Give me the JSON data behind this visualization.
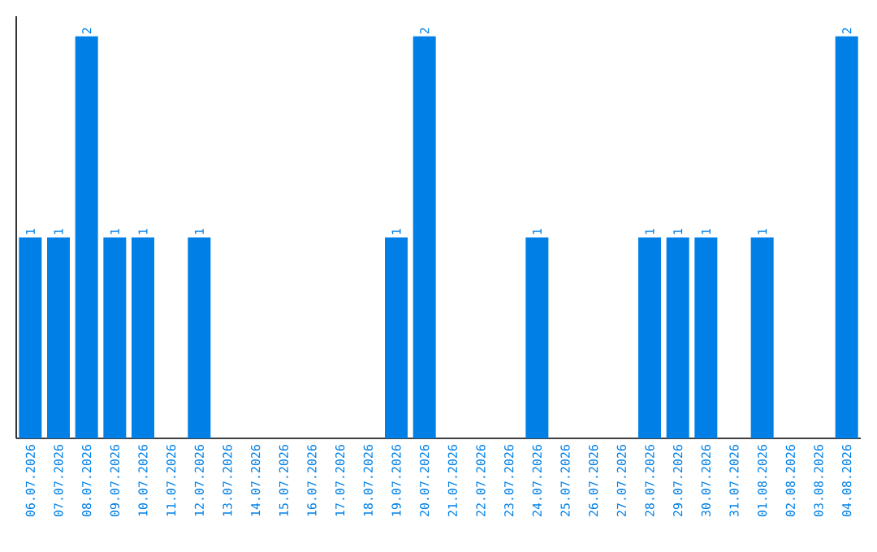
{
  "chart_data": {
    "type": "bar",
    "categories": [
      "06.07.2026",
      "07.07.2026",
      "08.07.2026",
      "09.07.2026",
      "10.07.2026",
      "11.07.2026",
      "12.07.2026",
      "13.07.2026",
      "14.07.2026",
      "15.07.2026",
      "16.07.2026",
      "17.07.2026",
      "18.07.2026",
      "19.07.2026",
      "20.07.2026",
      "21.07.2026",
      "22.07.2026",
      "23.07.2026",
      "24.07.2026",
      "25.07.2026",
      "26.07.2026",
      "27.07.2026",
      "28.07.2026",
      "29.07.2026",
      "30.07.2026",
      "31.07.2026",
      "01.08.2026",
      "02.08.2026",
      "03.08.2026",
      "04.08.2026"
    ],
    "values": [
      1,
      1,
      2,
      1,
      1,
      0,
      1,
      0,
      0,
      0,
      0,
      0,
      0,
      1,
      2,
      0,
      0,
      0,
      1,
      0,
      0,
      0,
      1,
      1,
      1,
      0,
      1,
      0,
      0,
      2
    ],
    "value_labels": [
      "1",
      "1",
      "2",
      "1",
      "1",
      null,
      "1",
      null,
      null,
      null,
      null,
      null,
      null,
      "1",
      "2",
      null,
      null,
      null,
      "1",
      null,
      null,
      null,
      "1",
      "1",
      "1",
      null,
      "1",
      null,
      null,
      "2"
    ],
    "color": "#0080e6",
    "ylim": [
      0,
      2.1
    ]
  }
}
